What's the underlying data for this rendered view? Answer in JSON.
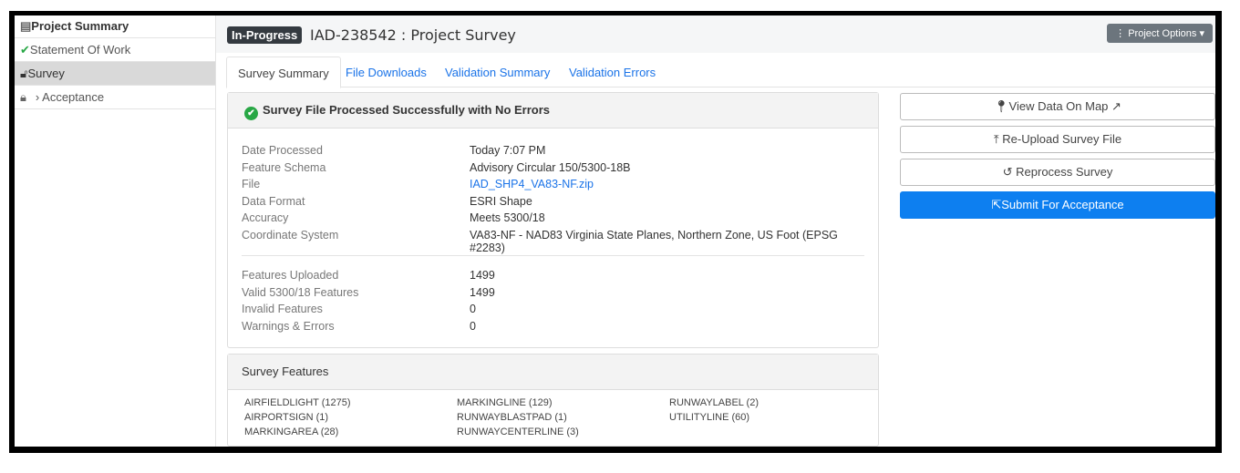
{
  "sidebar": {
    "items": [
      {
        "label": "Project Summary",
        "icon": "list-icon"
      },
      {
        "label": "Statement Of Work",
        "icon": "check-icon"
      },
      {
        "label": "Survey",
        "icon": "unlock-icon"
      },
      {
        "label": "› Acceptance",
        "icon": "lock-icon"
      }
    ]
  },
  "header": {
    "status": "In-Progress",
    "title": "IAD-238542 : Project Survey",
    "options": "Project Options"
  },
  "tabs": [
    "Survey Summary",
    "File Downloads",
    "Validation Summary",
    "Validation Errors"
  ],
  "summary": {
    "heading": "Survey File Processed Successfully with No Errors",
    "details": [
      {
        "label": "Date Processed",
        "value": "Today 7:07 PM"
      },
      {
        "label": "Feature Schema",
        "value": "Advisory Circular 150/5300-18B"
      },
      {
        "label": "File",
        "value": "IAD_SHP4_VA83-NF.zip"
      },
      {
        "label": "Data Format",
        "value": "ESRI Shape"
      },
      {
        "label": "Accuracy",
        "value": "Meets 5300/18"
      },
      {
        "label": "Coordinate System",
        "value": "VA83-NF - NAD83 Virginia State Planes, Northern Zone, US Foot (EPSG #2283)"
      }
    ],
    "counts": [
      {
        "label": "Features Uploaded",
        "value": "1499"
      },
      {
        "label": "Valid 5300/18 Features",
        "value": "1499"
      },
      {
        "label": "Invalid Features",
        "value": "0"
      },
      {
        "label": "Warnings & Errors",
        "value": "0"
      }
    ]
  },
  "features": {
    "heading": "Survey Features",
    "columns": [
      [
        "AIRFIELDLIGHT (1275)",
        "AIRPORTSIGN (1)",
        "MARKINGAREA (28)"
      ],
      [
        "MARKINGLINE (129)",
        "RUNWAYBLASTPAD (1)",
        "RUNWAYCENTERLINE (3)"
      ],
      [
        "RUNWAYLABEL (2)",
        "UTILITYLINE (60)"
      ]
    ]
  },
  "actions": {
    "view_map": "View Data On Map",
    "reupload": "Re-Upload Survey File",
    "reprocess": "Reprocess Survey",
    "submit": "Submit For Acceptance"
  },
  "colors": {
    "primary": "#0d7ff0",
    "success": "#28a745",
    "badge": "#343a40"
  }
}
